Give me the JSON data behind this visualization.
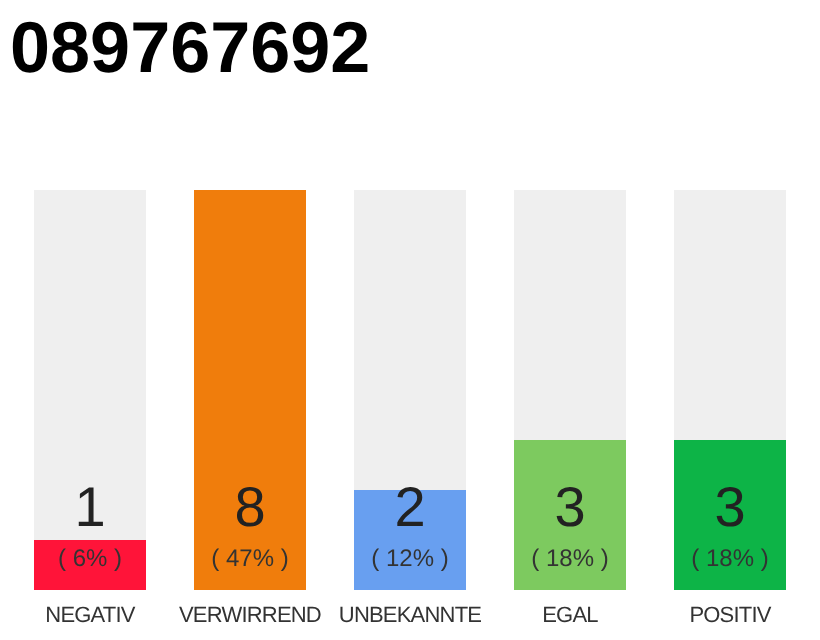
{
  "chart_data": {
    "type": "bar",
    "title": "089767692",
    "categories": [
      "NEGATIV",
      "VERWIRREND",
      "UNBEKANNTE",
      "EGAL",
      "POSITIV"
    ],
    "values": [
      1,
      8,
      2,
      3,
      3
    ],
    "colors": [
      "#ff1439",
      "#f07d0c",
      "#689ff0",
      "#7dca5f",
      "#0db447"
    ],
    "data_labels": true,
    "annotations": [
      "( 6% )",
      "( 47% )",
      "( 12% )",
      "( 18% )",
      "( 18% )"
    ],
    "grid": false,
    "legend": false
  }
}
